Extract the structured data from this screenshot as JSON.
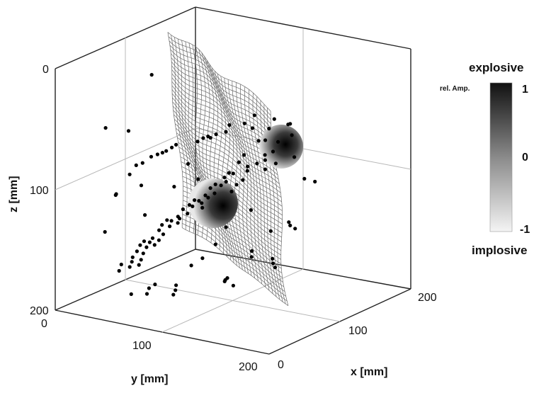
{
  "chart_data": {
    "type": "scatter",
    "subtype": "3d-surface-with-sources",
    "axes": {
      "x": {
        "label": "x [mm]",
        "ticks": [
          "0",
          "100",
          "200"
        ],
        "range": [
          0,
          200
        ]
      },
      "y": {
        "label": "y [mm]",
        "ticks": [
          "0",
          "100",
          "200"
        ],
        "range": [
          0,
          200
        ]
      },
      "z": {
        "label": "z [mm]",
        "ticks": [
          "0",
          "100",
          "200"
        ],
        "range": [
          0,
          200
        ],
        "reversed": true
      }
    },
    "grid": true,
    "colorbar": {
      "top_label": "explosive",
      "bottom_label": "implosive",
      "scale_label": "rel. Amp.",
      "ticks": [
        "1",
        "0",
        "-1"
      ],
      "range": [
        -1,
        1
      ],
      "colors": {
        "max": "#111111",
        "min": "#f4f4f4"
      }
    },
    "sources": [
      {
        "name": "upper sphere",
        "amplitude": 1
      },
      {
        "name": "lower sphere",
        "amplitude": 1
      }
    ],
    "events": [
      [
        30,
        20,
        25
      ],
      [
        45,
        25,
        22
      ],
      [
        60,
        22,
        30
      ],
      [
        75,
        30,
        35
      ],
      [
        38,
        35,
        40
      ],
      [
        55,
        40,
        45
      ],
      [
        70,
        38,
        50
      ],
      [
        85,
        35,
        48
      ],
      [
        40,
        50,
        55
      ],
      [
        62,
        45,
        60
      ],
      [
        78,
        48,
        62
      ],
      [
        48,
        60,
        65
      ],
      [
        66,
        55,
        70
      ],
      [
        82,
        58,
        72
      ],
      [
        35,
        65,
        75
      ],
      [
        55,
        70,
        78
      ],
      [
        72,
        68,
        80
      ],
      [
        88,
        62,
        82
      ],
      [
        42,
        78,
        85
      ],
      [
        60,
        80,
        88
      ],
      [
        76,
        75,
        90
      ],
      [
        50,
        88,
        92
      ],
      [
        68,
        90,
        95
      ],
      [
        84,
        86,
        98
      ],
      [
        38,
        95,
        100
      ],
      [
        58,
        98,
        102
      ],
      [
        74,
        100,
        105
      ],
      [
        46,
        105,
        108
      ],
      [
        64,
        108,
        110
      ],
      [
        80,
        110,
        112
      ],
      [
        52,
        115,
        115
      ],
      [
        70,
        118,
        118
      ],
      [
        86,
        120,
        120
      ],
      [
        40,
        122,
        122
      ],
      [
        60,
        125,
        125
      ],
      [
        78,
        128,
        128
      ],
      [
        48,
        132,
        130
      ],
      [
        66,
        135,
        132
      ],
      [
        82,
        138,
        135
      ],
      [
        56,
        140,
        138
      ],
      [
        74,
        142,
        140
      ],
      [
        90,
        145,
        142
      ],
      [
        44,
        146,
        145
      ],
      [
        62,
        150,
        148
      ],
      [
        80,
        152,
        150
      ],
      [
        52,
        155,
        152
      ],
      [
        70,
        158,
        155
      ],
      [
        86,
        160,
        158
      ],
      [
        58,
        162,
        160
      ],
      [
        76,
        165,
        162
      ],
      [
        92,
        168,
        165
      ],
      [
        64,
        170,
        168
      ],
      [
        82,
        172,
        170
      ],
      [
        54,
        174,
        172
      ],
      [
        72,
        176,
        175
      ],
      [
        88,
        178,
        178
      ],
      [
        60,
        180,
        180
      ],
      [
        78,
        182,
        182
      ],
      [
        94,
        184,
        185
      ],
      [
        30,
        40,
        60
      ],
      [
        34,
        60,
        70
      ],
      [
        96,
        40,
        70
      ],
      [
        100,
        60,
        80
      ],
      [
        32,
        110,
        90
      ],
      [
        98,
        100,
        110
      ],
      [
        36,
        140,
        120
      ],
      [
        102,
        130,
        130
      ],
      [
        50,
        30,
        140
      ],
      [
        66,
        40,
        150
      ],
      [
        84,
        50,
        160
      ],
      [
        40,
        60,
        165
      ],
      [
        58,
        80,
        170
      ],
      [
        74,
        90,
        175
      ],
      [
        92,
        100,
        180
      ],
      [
        46,
        120,
        185
      ],
      [
        64,
        130,
        188
      ],
      [
        80,
        140,
        190
      ],
      [
        54,
        150,
        192
      ],
      [
        72,
        160,
        194
      ],
      [
        88,
        165,
        196
      ],
      [
        62,
        170,
        198
      ],
      [
        70,
        60,
        32
      ],
      [
        52,
        50,
        36
      ],
      [
        74,
        72,
        42
      ],
      [
        44,
        84,
        48
      ],
      [
        64,
        92,
        52
      ],
      [
        84,
        96,
        56
      ],
      [
        56,
        104,
        58
      ],
      [
        76,
        112,
        62
      ],
      [
        92,
        118,
        66
      ],
      [
        48,
        128,
        68
      ],
      [
        68,
        136,
        72
      ],
      [
        86,
        144,
        76
      ],
      [
        60,
        150,
        80
      ],
      [
        78,
        156,
        84
      ],
      [
        94,
        162,
        88
      ],
      [
        66,
        168,
        92
      ],
      [
        84,
        174,
        96
      ],
      [
        58,
        20,
        110
      ],
      [
        72,
        28,
        118
      ],
      [
        88,
        34,
        126
      ],
      [
        42,
        44,
        134
      ],
      [
        104,
        26,
        90
      ],
      [
        108,
        70,
        140
      ],
      [
        26,
        90,
        150
      ],
      [
        110,
        110,
        60
      ],
      [
        28,
        150,
        50
      ],
      [
        112,
        150,
        100
      ],
      [
        34,
        176,
        140
      ],
      [
        106,
        180,
        30
      ],
      [
        68,
        188,
        120
      ],
      [
        50,
        186,
        60
      ],
      [
        90,
        190,
        110
      ],
      [
        72,
        110,
        160
      ],
      [
        40,
        170,
        110
      ],
      [
        96,
        80,
        160
      ],
      [
        30,
        70,
        130
      ],
      [
        80,
        20,
        80
      ],
      [
        62,
        58,
        108
      ],
      [
        84,
        122,
        100
      ],
      [
        46,
        150,
        100
      ],
      [
        66,
        84,
        128
      ]
    ]
  }
}
